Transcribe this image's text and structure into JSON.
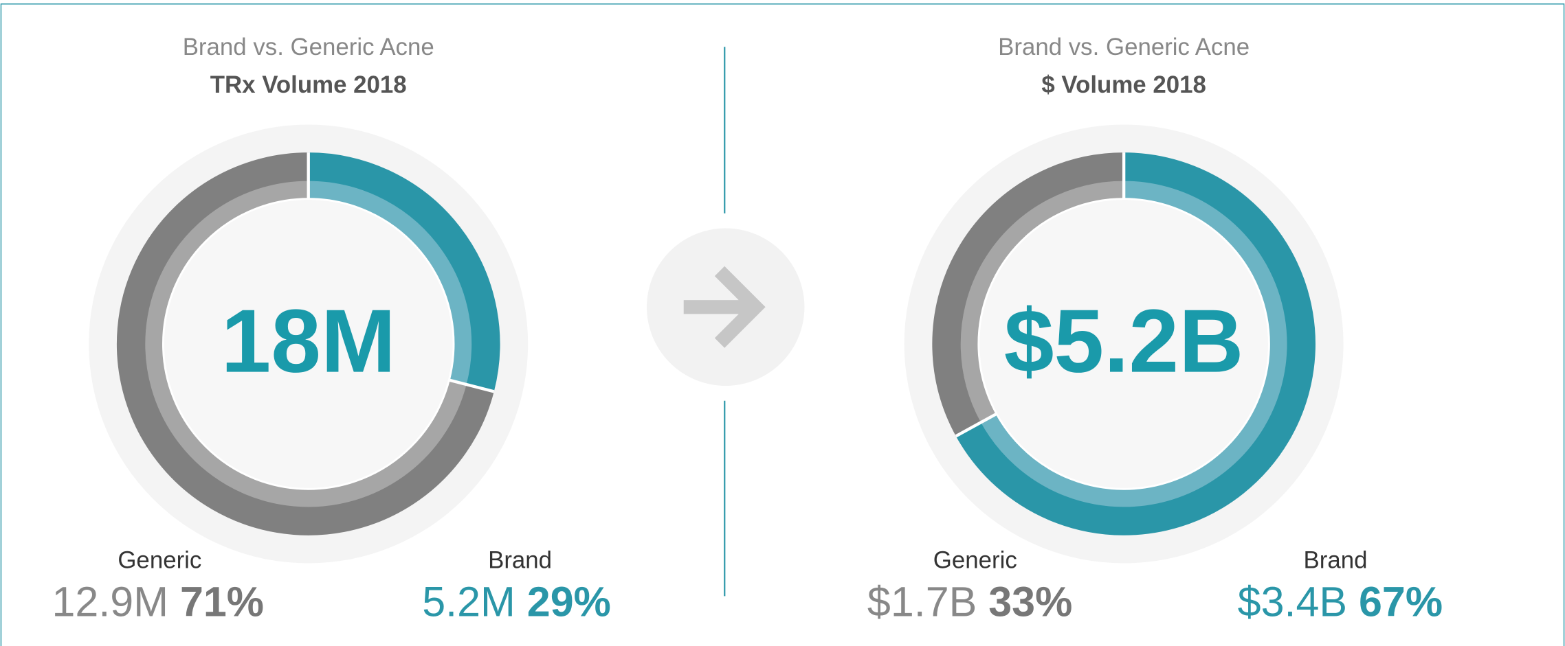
{
  "chart_data": [
    {
      "type": "pie",
      "title": "Brand vs. Generic Acne",
      "subtitle": "TRx Volume 2018",
      "center_label": "18M",
      "categories": [
        "Generic",
        "Brand"
      ],
      "values": [
        71,
        29
      ],
      "value_labels": [
        "71%",
        "29%"
      ],
      "amount_labels": [
        "12.9M",
        "5.2M"
      ],
      "colors": [
        "#808080",
        "#2a96a8"
      ],
      "light_colors": [
        "#a6a6a6",
        "#6cb4c4"
      ]
    },
    {
      "type": "pie",
      "title": "Brand vs. Generic Acne",
      "subtitle": "$ Volume 2018",
      "center_label": "$5.2B",
      "categories": [
        "Generic",
        "Brand"
      ],
      "values": [
        33,
        67
      ],
      "value_labels": [
        "33%",
        "67%"
      ],
      "amount_labels": [
        "$1.7B",
        "$3.4B"
      ],
      "colors": [
        "#808080",
        "#2a96a8"
      ],
      "light_colors": [
        "#a6a6a6",
        "#6cb4c4"
      ]
    }
  ]
}
